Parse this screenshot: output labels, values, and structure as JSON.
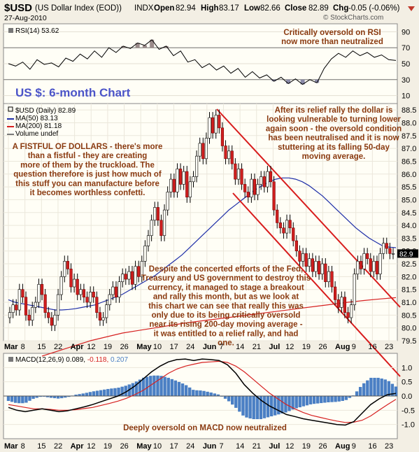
{
  "header": {
    "symbol": "$USD",
    "name": "(US Dollar Index (EOD))",
    "exchange": "INDX",
    "date": "27-Aug-2010",
    "open_label": "Open",
    "open": "82.94",
    "high_label": "High",
    "high": "83.17",
    "low_label": "Low",
    "low": "82.66",
    "close_label": "Close",
    "close": "82.89",
    "chg_label": "Chg",
    "chg": "-0.05 (-0.06%)",
    "watermark": "© StockCharts.com"
  },
  "chart_data": [
    {
      "type": "line",
      "panel": "rsi",
      "legend": "RSI(14) 53.62",
      "ylim": [
        0,
        100
      ],
      "yticks": [
        10,
        30,
        50,
        70,
        90
      ],
      "reference_lines": [
        30,
        70
      ],
      "series": [
        {
          "name": "RSI(14)",
          "values": [
            50,
            47,
            52,
            43,
            55,
            49,
            51,
            46,
            57,
            53,
            62,
            56,
            66,
            58,
            70,
            64,
            72,
            69,
            76,
            73,
            80,
            68,
            72,
            60,
            66,
            52,
            55,
            45,
            50,
            42,
            47,
            38,
            44,
            33,
            40,
            32,
            36,
            28,
            33,
            25,
            31,
            24,
            30,
            26,
            44,
            56,
            63,
            58,
            66,
            60,
            64,
            58,
            61,
            55,
            54
          ],
          "color": "#000000"
        }
      ],
      "annotation": "Critically oversold on RSI now more than neutralized"
    },
    {
      "type": "candlestick",
      "panel": "price",
      "title": "US $: 6-month Chart",
      "legend": [
        {
          "label": "$USD (Daily) 82.89",
          "color": "#000000"
        },
        {
          "label": "MA(50) 83.13",
          "color": "#1f2fa8"
        },
        {
          "label": "MA(200) 81.18",
          "color": "#d62020"
        },
        {
          "label": "Volume undef",
          "color": "#7a7a7a"
        }
      ],
      "ylim": [
        79.5,
        88.75
      ],
      "yticks": [
        79.5,
        80.0,
        80.5,
        81.0,
        81.5,
        82.0,
        82.5,
        83.0,
        83.5,
        84.0,
        84.5,
        85.0,
        85.5,
        86.0,
        86.5,
        87.0,
        87.5,
        88.0,
        88.5
      ],
      "close": [
        80.6,
        80.9,
        80.7,
        81.5,
        81.2,
        80.5,
        80.3,
        80.8,
        81.0,
        81.7,
        81.3,
        80.6,
        80.4,
        80.1,
        80.5,
        81.3,
        82.0,
        82.6,
        82.3,
        81.6,
        81.9,
        81.3,
        81.5,
        81.2,
        81.0,
        81.4,
        81.2,
        80.6,
        80.3,
        80.4,
        80.9,
        81.3,
        81.6,
        81.2,
        81.8,
        82.1,
        81.9,
        82.2,
        81.7,
        82.4,
        82.0,
        82.6,
        83.2,
        83.6,
        84.2,
        84.7,
        84.2,
        83.6,
        84.6,
        85.3,
        85.8,
        85.3,
        86.2,
        85.6,
        86.1,
        85.1,
        85.7,
        85.9,
        86.7,
        87.2,
        86.6,
        87.4,
        88.2,
        87.6,
        88.3,
        87.8,
        87.1,
        86.6,
        86.9,
        86.4,
        85.8,
        86.2,
        85.6,
        85.3,
        85.1,
        85.8,
        85.2,
        85.6,
        85.9,
        85.5,
        86.1,
        85.7,
        84.6,
        84.1,
        83.9,
        83.7,
        84.2,
        83.9,
        83.4,
        83.0,
        82.6,
        82.9,
        82.4,
        82.7,
        82.2,
        82.6,
        82.1,
        82.5,
        81.8,
        82.2,
        81.6,
        81.1,
        80.8,
        81.2,
        80.6,
        80.4,
        80.9,
        82.1,
        82.6,
        82.3,
        82.9,
        82.7,
        82.2,
        82.6,
        82.1,
        82.9,
        83.3,
        83.1,
        82.9,
        82.9
      ],
      "ma50": [
        81.1,
        81.0,
        80.95,
        80.9,
        80.85,
        80.8,
        80.75,
        80.7,
        80.7,
        80.72,
        80.75,
        80.8,
        80.85,
        80.9,
        81.0,
        81.1,
        81.2,
        81.3,
        81.45,
        81.6,
        81.75,
        81.9,
        82.05,
        82.25,
        82.45,
        82.65,
        82.85,
        83.1,
        83.35,
        83.6,
        83.85,
        84.1,
        84.35,
        84.6,
        84.8,
        85.0,
        85.2,
        85.4,
        85.55,
        85.7,
        85.8,
        85.85,
        85.85,
        85.8,
        85.7,
        85.55,
        85.35,
        85.15,
        84.9,
        84.65,
        84.4,
        84.15,
        83.9,
        83.7,
        83.5,
        83.35,
        83.2,
        83.15,
        83.13
      ],
      "ma200": [
        78.9,
        79.1,
        79.3,
        79.5,
        79.65,
        79.8,
        79.9,
        80.0,
        80.1,
        80.2,
        80.28,
        80.36,
        80.44,
        80.52,
        80.6,
        80.68,
        80.76,
        80.84,
        80.92,
        81.0,
        81.07,
        81.13,
        81.18
      ],
      "xticks": [
        "Mar",
        "8",
        "15",
        "22",
        "Apr",
        "12",
        "19",
        "26",
        "May",
        "10",
        "17",
        "24",
        "Jun",
        "7",
        "14",
        "21",
        "Jul",
        "12",
        "19",
        "26",
        "Aug",
        "9",
        "16",
        "23"
      ],
      "channel_note": "red downtrend channel lines",
      "annotations": [
        "A FISTFUL OF DOLLARS - there's more than a fistful - they are creating more of them by the truckload. The question therefore is just how much of this stuff you can manufacture before it becomes worthless confetti.",
        "After its relief rally the dollar is looking vulnerable to turning lower again soon - the oversold condition has been neutralised and it is now stuttering at its falling 50-day moving average.",
        "Despite the concerted efforts of the Fed, Treasury and US government to destroy this currency, it managed to stage a breakout and rally this month, but as we look at this chart we can see that really this was only due to its being critically oversold near its rising 200-day moving average - it was entitled to a relief rally, and had one."
      ]
    },
    {
      "type": "line",
      "panel": "macd",
      "legend": {
        "label": "MACD(12,26,9)",
        "macd": "0.089",
        "signal": "-0.118",
        "hist": "0.207"
      },
      "ylim": [
        -1.5,
        1.5
      ],
      "yticks": [
        -1.0,
        -0.5,
        0.0,
        0.5,
        1.0
      ],
      "series": [
        {
          "name": "MACD",
          "values": [
            -0.4,
            -0.5,
            -0.55,
            -0.5,
            -0.45,
            -0.5,
            -0.55,
            -0.52,
            -0.45,
            -0.38,
            -0.3,
            -0.2,
            -0.1,
            0.0,
            0.15,
            0.35,
            0.6,
            0.85,
            1.05,
            1.2,
            1.28,
            1.3,
            1.25,
            1.3,
            1.28,
            1.25,
            1.1,
            0.8,
            0.4,
            0.1,
            -0.15,
            -0.35,
            -0.5,
            -0.65,
            -0.72,
            -0.8,
            -0.85,
            -0.9,
            -0.95,
            -1.0,
            -1.02,
            -0.9,
            -0.6,
            -0.3,
            -0.1,
            0.05,
            0.09
          ],
          "color": "#000000"
        },
        {
          "name": "Signal",
          "values": [
            -0.3,
            -0.35,
            -0.4,
            -0.45,
            -0.45,
            -0.47,
            -0.5,
            -0.5,
            -0.48,
            -0.44,
            -0.4,
            -0.33,
            -0.26,
            -0.18,
            -0.08,
            0.05,
            0.2,
            0.4,
            0.6,
            0.8,
            0.95,
            1.05,
            1.12,
            1.18,
            1.2,
            1.22,
            1.18,
            1.05,
            0.85,
            0.6,
            0.35,
            0.1,
            -0.1,
            -0.3,
            -0.45,
            -0.58,
            -0.68,
            -0.75,
            -0.82,
            -0.88,
            -0.93,
            -0.92,
            -0.85,
            -0.7,
            -0.5,
            -0.3,
            -0.118
          ],
          "color": "#d62020"
        }
      ],
      "histogram_color": "#4a7fc4",
      "xticks": [
        "Mar",
        "8",
        "15",
        "22",
        "Apr",
        "12",
        "19",
        "26",
        "May",
        "10",
        "17",
        "24",
        "Jun",
        "7",
        "14",
        "21",
        "Jul",
        "12",
        "19",
        "26",
        "Aug",
        "9",
        "16",
        "23"
      ],
      "annotation": "Deeply oversold on MACD now neutralized"
    }
  ]
}
